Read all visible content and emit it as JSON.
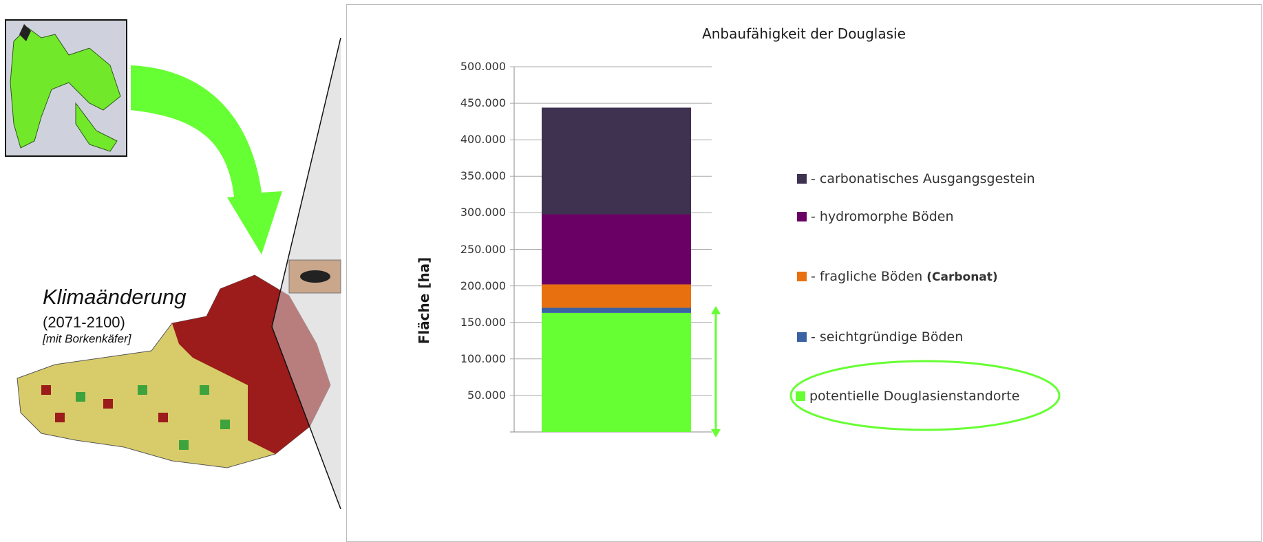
{
  "left_panel": {
    "heading": "Klimaänderung",
    "period": "(2071-2100)",
    "note": "[mit Borkenkäfer]"
  },
  "colors": {
    "green": "#66ff33",
    "dark_red": "#9c1b1b",
    "khaki": "#d8cc6a",
    "carbonat": "#3f3150",
    "hydromorph": "#6a0066",
    "fraglich": "#e8700f",
    "seicht": "#3b62a3",
    "arrow_green": "#66ff33"
  },
  "chart_data": {
    "type": "bar",
    "stacked": true,
    "title": "Anbaufähigkeit der Douglasie",
    "ylabel": "Fläche [ha]",
    "ylim": [
      0,
      500000
    ],
    "yticks": [
      "",
      "50.000",
      "100.000",
      "150.000",
      "200.000",
      "250.000",
      "300.000",
      "350.000",
      "400.000",
      "450.000",
      "500.000"
    ],
    "grid": true,
    "legend_position": "right",
    "series": [
      {
        "name": "potentielle Douglasienstandorte",
        "value": 163000,
        "color": "#66ff33"
      },
      {
        "name": "- seichtgründige Böden",
        "value": 7000,
        "color": "#3b62a3"
      },
      {
        "name": "- fragliche Böden",
        "name_suffix": "(Carbonat)",
        "value": 32000,
        "color": "#e8700f"
      },
      {
        "name": "- hydromorphe Böden",
        "value": 96000,
        "color": "#6a0066"
      },
      {
        "name": "- carbonatisches Ausgangsgestein",
        "value": 146000,
        "color": "#3f3150"
      }
    ],
    "legend_order": [
      4,
      3,
      2,
      1,
      0
    ]
  }
}
